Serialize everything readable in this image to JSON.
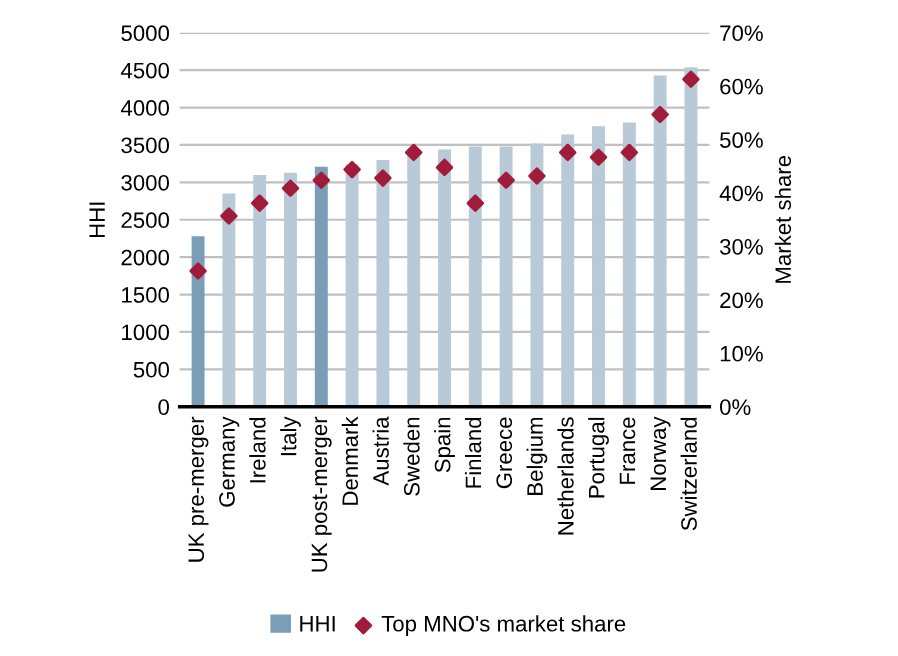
{
  "chart_data": {
    "type": "bar",
    "ylabel": "HHI",
    "y2label": "Market share",
    "categories": [
      "UK pre-merger",
      "Germany",
      "Ireland",
      "Italy",
      "UK post-merger",
      "Denmark",
      "Austria",
      "Sweden",
      "Spain",
      "Finland",
      "Greece",
      "Belgium",
      "Netherlands",
      "Portugal",
      "France",
      "Norway",
      "Switzerland"
    ],
    "series": [
      {
        "name": "HHI",
        "color": "#7a9db8",
        "colors": [
          "#7a9db8",
          "#b8cad8",
          "#b8cad8",
          "#b8cad8",
          "#7a9db8",
          "#b8cad8",
          "#b8cad8",
          "#b8cad8",
          "#b8cad8",
          "#b8cad8",
          "#b8cad8",
          "#b8cad8",
          "#b8cad8",
          "#b8cad8",
          "#b8cad8",
          "#b8cad8",
          "#b8cad8"
        ],
        "values": [
          2280,
          2850,
          3100,
          3130,
          3210,
          3240,
          3300,
          3400,
          3440,
          3480,
          3480,
          3520,
          3640,
          3750,
          3800,
          4430,
          4540
        ]
      },
      {
        "name": "Top MNO's market share",
        "type": "scatter",
        "axis": "y2",
        "color": "#a01c3a",
        "marker": "diamond",
        "values": [
          25.4,
          35.7,
          38.1,
          40.9,
          42.4,
          44.4,
          42.8,
          47.6,
          44.8,
          38.1,
          42.4,
          43.2,
          47.6,
          46.7,
          47.6,
          54.7,
          61.3
        ]
      }
    ],
    "ylim": [
      0,
      5000
    ],
    "yticks": [
      0,
      500,
      1000,
      1500,
      2000,
      2500,
      3000,
      3500,
      4000,
      4500,
      5000
    ],
    "y2lim": [
      0,
      70
    ],
    "y2ticks": [
      {
        "value": 0,
        "label": "0%"
      },
      {
        "value": 10,
        "label": "10%"
      },
      {
        "value": 20,
        "label": "20%"
      },
      {
        "value": 30,
        "label": "30%"
      },
      {
        "value": 40,
        "label": "40%"
      },
      {
        "value": 50,
        "label": "50%"
      },
      {
        "value": 60,
        "label": "60%"
      },
      {
        "value": 70,
        "label": "70%"
      }
    ],
    "grid": "y",
    "legend": "bottom"
  }
}
